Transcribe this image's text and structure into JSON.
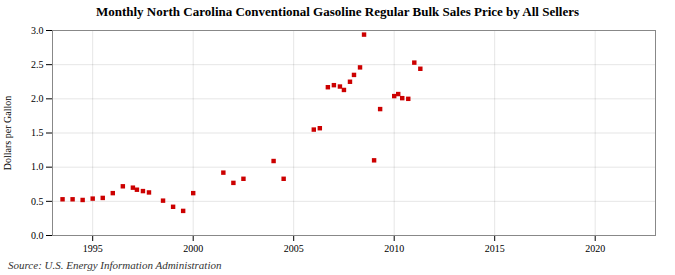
{
  "chart_data": {
    "type": "scatter",
    "title": "Monthly North Carolina Conventional Gasoline Regular Bulk Sales Price by All Sellers",
    "ylabel": "Dollars per Gallon",
    "source": "Source: U.S. Energy Information Administration",
    "color": "#cc0000",
    "marker": "square",
    "grid": true,
    "xlim": [
      1993.0,
      2023.0
    ],
    "ylim": [
      0.0,
      3.0
    ],
    "xticks": [
      1995,
      2000,
      2005,
      2010,
      2015,
      2020
    ],
    "yticks": [
      {
        "value": 0.0,
        "label": "0.0"
      },
      0.5,
      {
        "value": 1.0,
        "label": "1.0"
      },
      1.5,
      {
        "value": 2.0,
        "label": "2.0"
      },
      2.5,
      {
        "value": 3.0,
        "label": "3.0"
      }
    ],
    "x": [
      1993.5,
      1994.0,
      1994.5,
      1995.0,
      1995.5,
      1996.0,
      1996.5,
      1997.0,
      1997.2,
      1997.5,
      1997.8,
      1998.5,
      1999.0,
      1999.5,
      2000.0,
      2001.5,
      2002.0,
      2002.5,
      2004.0,
      2004.5,
      2006.0,
      2006.3,
      2006.7,
      2007.0,
      2007.3,
      2007.5,
      2007.8,
      2008.0,
      2008.3,
      2008.5,
      2009.0,
      2009.3,
      2010.0,
      2010.2,
      2010.4,
      2010.7,
      2011.0,
      2011.3
    ],
    "values": [
      0.53,
      0.53,
      0.52,
      0.54,
      0.55,
      0.62,
      0.72,
      0.7,
      0.67,
      0.65,
      0.63,
      0.51,
      0.42,
      0.36,
      0.62,
      0.92,
      0.77,
      0.83,
      1.09,
      0.83,
      1.55,
      1.57,
      2.17,
      2.2,
      2.18,
      2.13,
      2.25,
      2.35,
      2.46,
      2.94,
      1.1,
      1.85,
      2.04,
      2.07,
      2.01,
      2.0,
      2.53,
      2.44
    ]
  }
}
